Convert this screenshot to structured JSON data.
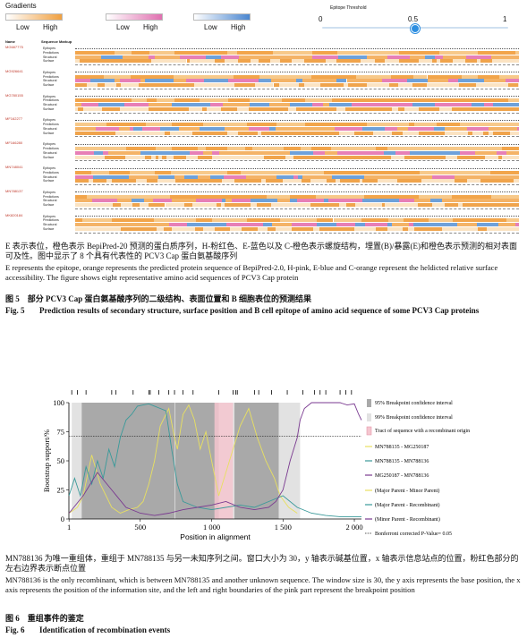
{
  "figure5": {
    "gradients_title": "Gradients",
    "gradients": [
      {
        "low": "Low",
        "high": "High",
        "color": "#f0a040"
      },
      {
        "low": "Low",
        "high": "High",
        "color": "#e070b0"
      },
      {
        "low": "Low",
        "high": "High",
        "color": "#4a86d0"
      }
    ],
    "threshold": {
      "label": "Epitope Threshold",
      "min": "0",
      "max": "1",
      "value": "0.5",
      "value_num": 0.5
    },
    "columns": {
      "name": "Name",
      "markup": "Sequence Markup"
    },
    "row_labels": [
      "Epitopes",
      "Predictions",
      "Structural",
      "Surface"
    ],
    "sequences": [
      "MG687775",
      "MG926641",
      "MG780155",
      "MF162277",
      "MF166280",
      "MN748041",
      "MN788137",
      "MK820184"
    ],
    "caption_cn": "E 表示表位，橙色表示 BepiPred-20 预测的蛋白质序列，H-粉红色、E-蓝色以及 C-橙色表示螺旋结构，埋置(B)/暴露(E)和橙色表示预测的相对表面可及性。图中显示了 8 个具有代表性的 PCV3 Cap 蛋白氨基酸序列",
    "caption_en": "E represents the epitope, orange represents the predicted protein sequence of BepiPred-2.0, H-pink, E-blue and C-orange represent the heldicted relative surface accessibility. The figure shows eight representative amino acid sequences of PCV3 Cap protein",
    "title_cn": "图 5　部分 PCV3 Cap 蛋白氨基酸序列的二级结构、表面位置和 B 细胞表位的预测结果",
    "title_en_label": "Fig. 5",
    "title_en": "Prediction results of secondary structure, surface position and B cell epitope of amino acid sequence of some PCV3 Cap proteins"
  },
  "figure6": {
    "chart_data": {
      "type": "line",
      "ylabel": "Bootstrap support/%",
      "xlabel": "Position in alignment",
      "xlim": [
        0,
        2050
      ],
      "ylim": [
        0,
        100
      ],
      "x_ticks": [
        1,
        500,
        1000,
        1500,
        2000
      ],
      "x_tick_labels": [
        "1",
        "500",
        "1 000",
        "1 500",
        "2 000"
      ],
      "y_ticks": [
        0,
        25,
        50,
        75,
        100
      ],
      "bonferroni_p": 0.05,
      "bonferroni_y": 71,
      "confidence_95": [
        [
          90,
          740
        ],
        [
          745,
          1050
        ],
        [
          1160,
          1470
        ]
      ],
      "confidence_99": [
        [
          20,
          1620
        ]
      ],
      "recombinant_tract": [
        [
          1020,
          1150
        ]
      ],
      "breakpoints": [
        20,
        60,
        120,
        300,
        330,
        450,
        560,
        570,
        630,
        700,
        740,
        800,
        870,
        1050,
        1150,
        1170,
        1180,
        1300,
        1330,
        1420,
        1530,
        1640,
        1720,
        1760,
        1800,
        1900,
        1940,
        1980
      ],
      "series": [
        {
          "name": "MN788135 - MG250187",
          "color": "#e8e060",
          "x": [
            1,
            60,
            100,
            160,
            220,
            300,
            360,
            420,
            480,
            520,
            560,
            600,
            640,
            700,
            740,
            760,
            800,
            840,
            880,
            920,
            960,
            1000,
            1050,
            1100,
            1150,
            1200,
            1260,
            1320,
            1380,
            1440,
            1480,
            1540,
            1600
          ],
          "y": [
            5,
            10,
            20,
            55,
            30,
            10,
            5,
            8,
            10,
            15,
            30,
            50,
            80,
            95,
            70,
            60,
            90,
            98,
            85,
            60,
            75,
            50,
            20,
            40,
            60,
            80,
            95,
            70,
            50,
            35,
            20,
            10,
            5
          ]
        },
        {
          "name": "MN788135 - MN788136",
          "color": "#3a9a9a",
          "x": [
            1,
            40,
            80,
            120,
            160,
            200,
            240,
            280,
            320,
            360,
            400,
            440,
            480,
            520,
            560,
            600,
            640,
            680,
            720,
            760,
            800,
            900,
            1000,
            1100,
            1200,
            1300,
            1400,
            1500,
            1600,
            1700,
            1800,
            1900,
            2000,
            2050
          ],
          "y": [
            20,
            35,
            20,
            45,
            30,
            50,
            35,
            60,
            45,
            70,
            85,
            90,
            97,
            98,
            99,
            97,
            95,
            93,
            60,
            30,
            15,
            10,
            8,
            10,
            12,
            10,
            15,
            20,
            10,
            5,
            3,
            2,
            2,
            2
          ]
        },
        {
          "name": "MG250187 - MN788136",
          "color": "#7a3a90",
          "x": [
            1,
            100,
            200,
            300,
            400,
            500,
            600,
            700,
            800,
            900,
            1000,
            1100,
            1200,
            1300,
            1400,
            1450,
            1500,
            1550,
            1600,
            1620,
            1650,
            1700,
            1800,
            1900,
            1950,
            2000,
            2030,
            2050
          ],
          "y": [
            5,
            20,
            40,
            25,
            10,
            5,
            3,
            5,
            8,
            10,
            12,
            15,
            10,
            8,
            10,
            15,
            25,
            50,
            70,
            85,
            95,
            100,
            100,
            100,
            98,
            99,
            90,
            85
          ]
        }
      ],
      "legend": {
        "ci95": "95% Breakpoint confidence interval",
        "ci99": "99% Breakpoint confidence interval",
        "tract": "Tract of sequence with a recombinant origin",
        "s1": "MN788135 - MG250187",
        "s2": "MN788135 - MN788136",
        "s3": "MG250187 - MN788136",
        "p1": "(Major Parent - Minor Parent)",
        "p2": "(Major Parent - Recombinant)",
        "p3": "(Minor Parent - Recombinant)",
        "bonf": "Bonferroni corrected P-Value= 0.05"
      }
    },
    "caption_cn": "MN788136 为唯一重组体，重组于 MN788135 与另一未知序列之间。窗口大小为 30，y 轴表示碱基位置，x 轴表示信息站点的位置，粉红色部分的左右边界表示断点位置",
    "caption_en": "MN788136 is the only recombinant, which is between MN788135 and another unknown sequence. The window size is 30, the y axis represents the base position, the x axis represents the position of the information site, and the left and right boundaries of the pink part represent the breakpoint position",
    "title_cn": "图 6　重组事件的鉴定",
    "title_en_label": "Fig. 6",
    "title_en": "Identification of recombination events"
  }
}
